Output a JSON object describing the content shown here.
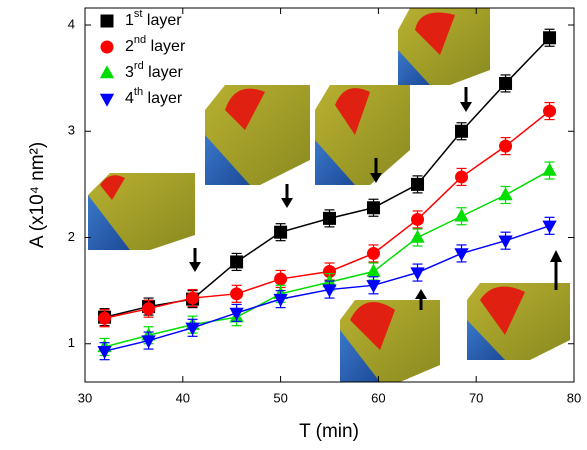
{
  "chart_data": {
    "type": "line",
    "x_label": "T (min)",
    "y_label": "A (x10⁴ nm²)",
    "x": [
      32,
      36.5,
      41,
      45.5,
      50,
      55,
      59.5,
      64,
      68.5,
      73,
      77.5
    ],
    "xlim": [
      30,
      80
    ],
    "xticks": [
      30,
      40,
      50,
      60,
      70,
      80
    ],
    "ylim": [
      0.64,
      4.16
    ],
    "yticks": [
      1,
      2,
      3,
      4
    ],
    "legend": "upper-left",
    "series": [
      {
        "name": "1st layer",
        "color": "#000000",
        "marker": "square",
        "values": [
          1.25,
          1.35,
          1.42,
          1.77,
          2.05,
          2.18,
          2.28,
          2.5,
          3.0,
          3.45,
          3.88
        ],
        "errors": [
          0.08,
          0.08,
          0.08,
          0.08,
          0.08,
          0.08,
          0.08,
          0.08,
          0.08,
          0.08,
          0.08
        ]
      },
      {
        "name": "2nd layer",
        "color": "#ff0000",
        "marker": "circle",
        "values": [
          1.24,
          1.33,
          1.43,
          1.47,
          1.61,
          1.68,
          1.85,
          2.17,
          2.57,
          2.86,
          3.19
        ],
        "errors": [
          0.08,
          0.08,
          0.08,
          0.08,
          0.08,
          0.08,
          0.08,
          0.08,
          0.08,
          0.08,
          0.08
        ]
      },
      {
        "name": "3rd layer",
        "color": "#00dd00",
        "marker": "triangle-up",
        "values": [
          0.97,
          1.08,
          1.18,
          1.25,
          1.47,
          1.58,
          1.68,
          2.0,
          2.2,
          2.4,
          2.63
        ],
        "errors": [
          0.08,
          0.08,
          0.08,
          0.08,
          0.08,
          0.08,
          0.08,
          0.08,
          0.08,
          0.08,
          0.08
        ]
      },
      {
        "name": "4th layer",
        "color": "#0000ff",
        "marker": "triangle-down",
        "values": [
          0.93,
          1.03,
          1.15,
          1.29,
          1.42,
          1.51,
          1.55,
          1.67,
          1.85,
          1.97,
          2.11
        ],
        "errors": [
          0.08,
          0.08,
          0.08,
          0.08,
          0.08,
          0.08,
          0.08,
          0.08,
          0.08,
          0.08,
          0.08
        ]
      }
    ]
  }
}
